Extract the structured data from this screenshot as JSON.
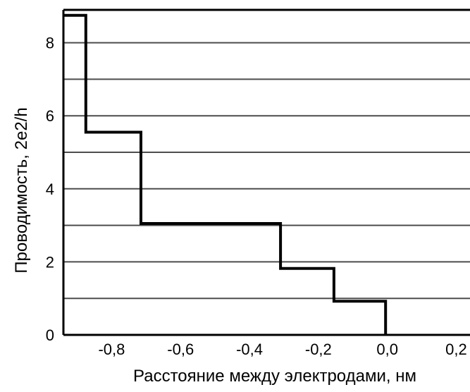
{
  "chart_data": {
    "type": "line",
    "title": "",
    "xlabel": "Расстояние между электродами, нм",
    "ylabel": "Проводимость, 2e2/h",
    "xlim": [
      -0.94,
      0.24
    ],
    "ylim": [
      0,
      8.9
    ],
    "xticks": [
      -0.8,
      -0.6,
      -0.4,
      -0.2,
      0.0,
      0.2
    ],
    "xtick_labels": [
      "-0,8",
      "-0,6",
      "-0,4",
      "-0,2",
      "0,0",
      "0,2"
    ],
    "yticks": [
      0,
      2,
      4,
      6,
      8
    ],
    "ytick_labels": [
      "0",
      "2",
      "4",
      "6",
      "8"
    ],
    "grid_lines_y": [
      1,
      2,
      3,
      4,
      5,
      6,
      7,
      8
    ],
    "grid": true,
    "colors": {
      "line": "#000000",
      "grid": "#4d4d4d"
    },
    "series": [
      {
        "x": [
          -0.94,
          -0.875,
          -0.875,
          -0.715,
          -0.715,
          -0.31,
          -0.31,
          -0.155,
          -0.155,
          -0.005,
          -0.005
        ],
        "y": [
          8.75,
          8.75,
          5.55,
          5.55,
          3.05,
          3.05,
          1.82,
          1.82,
          0.92,
          0.92,
          0
        ]
      }
    ]
  }
}
